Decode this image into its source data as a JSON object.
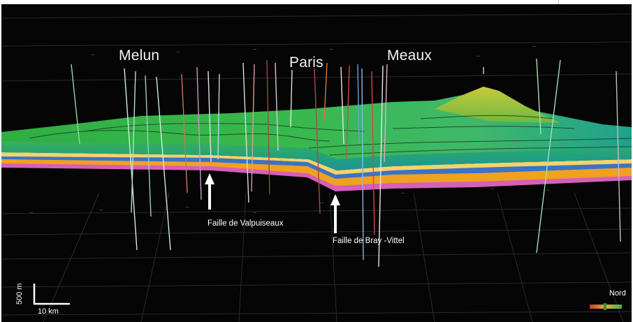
{
  "cities": {
    "melun": "Melun",
    "paris": "Paris",
    "meaux": "Meaux"
  },
  "faults": {
    "valpuiseaux": "Faille de Valpuiseaux",
    "bray_vittel": "Faille de Bray -Vittel"
  },
  "scale": {
    "vertical": "500 m",
    "horizontal": "10 km"
  },
  "orientation": {
    "north": "Nord"
  },
  "colors": {
    "background": "#050505",
    "surface_top": "#3cbf4a",
    "surface_front": "#1f9e7a",
    "layer_orange": "#f0a21e",
    "layer_pink": "#d65fb8",
    "layer_blue": "#3a73c8",
    "arrow": "#ffffff"
  }
}
